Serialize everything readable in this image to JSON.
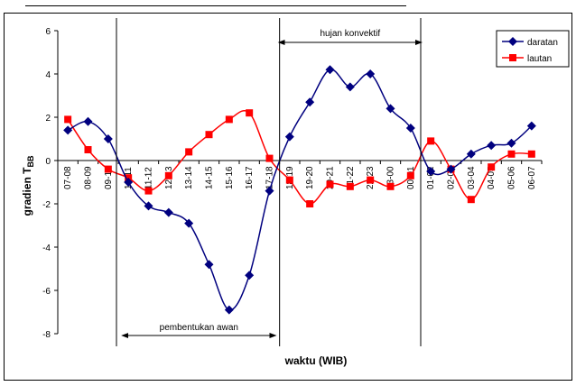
{
  "chart_data": {
    "type": "line",
    "title": "",
    "xlabel": "waktu (WIB)",
    "ylabel_main": "gradien T",
    "ylabel_sub": "BB",
    "ylim": [
      -8,
      6
    ],
    "yticks": [
      6,
      4,
      2,
      0,
      -2,
      -4,
      -6,
      -8
    ],
    "grid": false,
    "legend_position": "top-right",
    "categories": [
      "07-08",
      "08-09",
      "09-10",
      "10-11",
      "11-12",
      "12-13",
      "13-14",
      "14-15",
      "15-16",
      "16-17",
      "17-18",
      "18-19",
      "19-20",
      "20-21",
      "21-22",
      "22-23",
      "23-00",
      "00-01",
      "01-02",
      "02-03",
      "03-04",
      "04-05",
      "05-06",
      "06-07"
    ],
    "series": [
      {
        "name": "daratan",
        "color": "#00007f",
        "marker": "diamond",
        "values": [
          1.4,
          1.8,
          1.0,
          -1.0,
          -2.1,
          -2.4,
          -2.9,
          -4.8,
          -6.9,
          -5.3,
          -1.4,
          1.1,
          2.7,
          4.2,
          3.4,
          4.0,
          2.4,
          1.5,
          -0.5,
          -0.4,
          0.3,
          0.7,
          0.8,
          1.6
        ]
      },
      {
        "name": "lautan",
        "color": "#ff0000",
        "marker": "square",
        "values": [
          1.9,
          0.5,
          -0.4,
          -0.8,
          -1.4,
          -0.7,
          0.4,
          1.2,
          1.9,
          2.2,
          0.1,
          -0.9,
          -2.0,
          -1.1,
          -1.2,
          -0.9,
          -1.2,
          -0.7,
          0.9,
          -0.4,
          -1.8,
          -0.3,
          0.3,
          0.3
        ]
      }
    ],
    "annotations": [
      {
        "label": "pembentukan awan",
        "from": "10-11",
        "to": "17-18"
      },
      {
        "label": "hujan konvektif",
        "from": "18-19",
        "to": "00-01"
      }
    ]
  }
}
